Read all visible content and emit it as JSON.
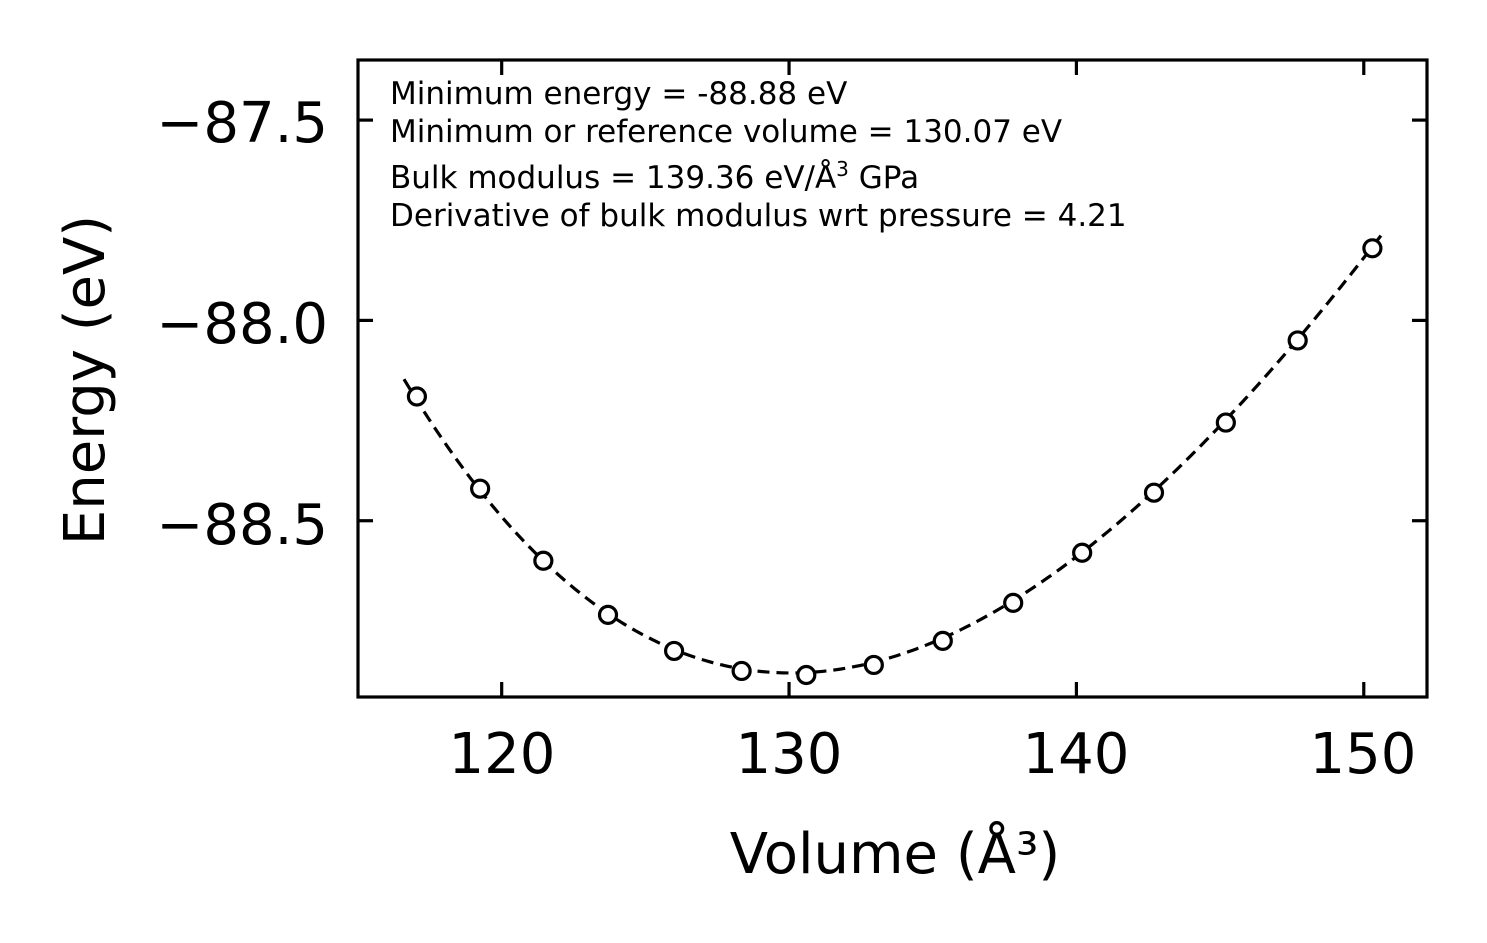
{
  "chart_data": {
    "type": "scatter",
    "title": "",
    "xlabel": "Volume (Å³)",
    "ylabel": "Energy (eV)",
    "xlim": [
      115,
      152.2
    ],
    "ylim": [
      -88.94,
      -87.35
    ],
    "xticks": [
      120,
      130,
      140,
      150
    ],
    "xtick_labels": [
      "120",
      "130",
      "140",
      "150"
    ],
    "yticks": [
      -87.5,
      -88.0,
      -88.5
    ],
    "ytick_labels": [
      "−87.5",
      "−88.0",
      "−88.5"
    ],
    "grid": false,
    "series": [
      {
        "name": "data",
        "marker": "open-circle",
        "color": "#000000",
        "x": [
          117.05,
          119.25,
          121.45,
          123.7,
          126.0,
          128.35,
          130.6,
          132.95,
          135.35,
          137.8,
          140.2,
          142.7,
          145.2,
          147.7,
          150.3
        ],
        "y": [
          -88.19,
          -88.42,
          -88.6,
          -88.735,
          -88.825,
          -88.875,
          -88.885,
          -88.86,
          -88.8,
          -88.705,
          -88.58,
          -88.43,
          -88.255,
          -88.05,
          -87.82
        ]
      },
      {
        "name": "fit",
        "line_style": "dashed",
        "color": "#000000",
        "fit_params": {
          "E0": -88.88,
          "V0": 130.07,
          "B0": 139.36,
          "B0_prime": 4.21
        },
        "x_range": [
          116.6,
          150.6
        ]
      }
    ],
    "annotations": [
      "Minimum energy = -88.88 eV",
      "Minimum or reference volume = 130.07 eV",
      "Bulk modulus = 139.36 eV/Å",
      "3",
      " GPa",
      "Derivative of bulk modulus wrt pressure = 4.21"
    ]
  }
}
